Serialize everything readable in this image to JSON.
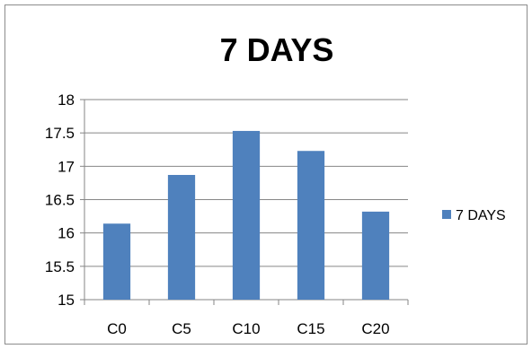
{
  "chart_data": {
    "type": "bar",
    "title": "7 DAYS",
    "xlabel": "",
    "ylabel": "",
    "categories": [
      "C0",
      "C5",
      "C10",
      "C15",
      "C20"
    ],
    "series": [
      {
        "name": "7 DAYS",
        "values": [
          16.14,
          16.87,
          17.53,
          17.23,
          16.32
        ],
        "color": "#4f81bd"
      }
    ],
    "ylim": [
      15,
      18
    ],
    "yticks": [
      "15",
      "15.5",
      "16",
      "16.5",
      "17",
      "17.5",
      "18"
    ],
    "grid": true,
    "legend_position": "right"
  }
}
